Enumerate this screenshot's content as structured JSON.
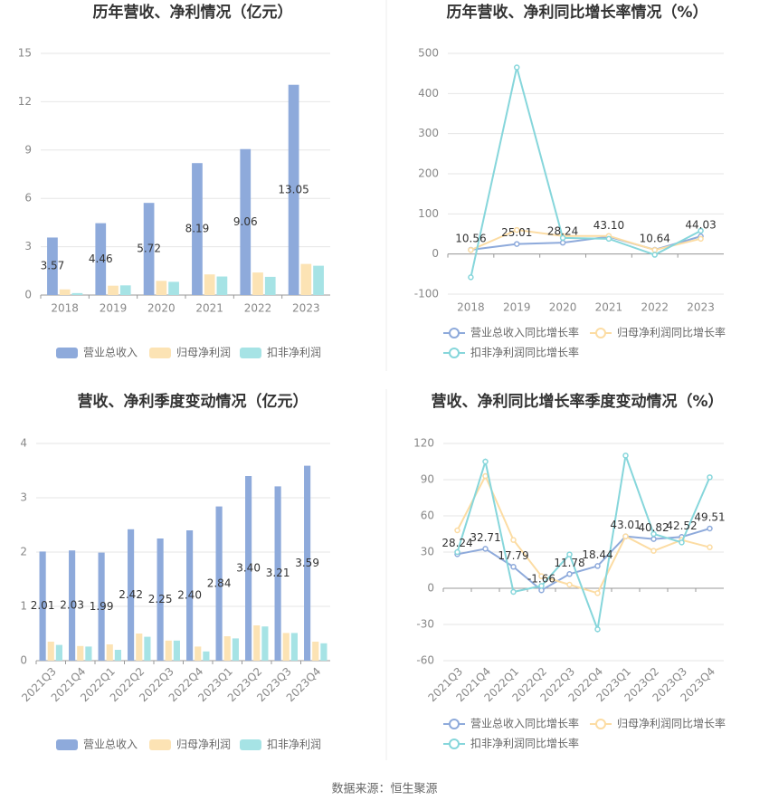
{
  "chart_data": [
    {
      "type": "bar",
      "title": "历年营收、净利情况（亿元）",
      "categories": [
        "2018",
        "2019",
        "2020",
        "2021",
        "2022",
        "2023"
      ],
      "series": [
        {
          "name": "营业总收入",
          "color": "#8eaadb",
          "values": [
            3.57,
            4.46,
            5.72,
            8.19,
            9.06,
            13.05
          ],
          "value_labels": [
            "3.57",
            "4.46",
            "5.72",
            "8.19",
            "9.06",
            "13.05"
          ]
        },
        {
          "name": "归母净利润",
          "color": "#fce3b4",
          "values": [
            0.35,
            0.58,
            0.88,
            1.28,
            1.4,
            1.93
          ]
        },
        {
          "name": "扣非净利润",
          "color": "#a6e3e5",
          "values": [
            0.12,
            0.6,
            0.82,
            1.15,
            1.13,
            1.82
          ]
        }
      ],
      "ylim": [
        0,
        15
      ],
      "yticks": [
        0,
        3,
        6,
        9,
        12,
        15
      ],
      "grid": true
    },
    {
      "type": "line",
      "title": "历年营收、净利同比增长率情况（%）",
      "categories": [
        "2018",
        "2019",
        "2020",
        "2021",
        "2022",
        "2023"
      ],
      "series": [
        {
          "name": "营业总收入同比增长率",
          "color": "#8eaadb",
          "values": [
            10.56,
            25.01,
            28.24,
            43.1,
            10.64,
            44.03
          ],
          "value_labels": [
            "10.56",
            "25.01",
            "28.24",
            "43.10",
            "10.64",
            "44.03"
          ]
        },
        {
          "name": "归母净利润同比增长率",
          "color": "#fcdca3",
          "values": [
            10,
            60,
            45,
            45,
            10,
            38
          ]
        },
        {
          "name": "扣非净利润同比增长率",
          "color": "#86d6db",
          "values": [
            -58,
            465,
            40,
            38,
            -2,
            58
          ]
        }
      ],
      "ylim": [
        -100,
        500
      ],
      "yticks": [
        -100,
        0,
        100,
        200,
        300,
        400,
        500
      ],
      "grid": true
    },
    {
      "type": "bar",
      "title": "营收、净利季度变动情况（亿元）",
      "categories": [
        "2021Q3",
        "2021Q4",
        "2022Q1",
        "2022Q2",
        "2022Q3",
        "2022Q4",
        "2023Q1",
        "2023Q2",
        "2023Q3",
        "2023Q4"
      ],
      "series": [
        {
          "name": "营业总收入",
          "color": "#8eaadb",
          "values": [
            2.01,
            2.03,
            1.99,
            2.42,
            2.25,
            2.4,
            2.84,
            3.4,
            3.21,
            3.59
          ],
          "value_labels": [
            "2.01",
            "2.03",
            "1.99",
            "2.42",
            "2.25",
            "2.40",
            "2.84",
            "3.40",
            "3.21",
            "3.59"
          ]
        },
        {
          "name": "归母净利润",
          "color": "#fce3b4",
          "values": [
            0.35,
            0.27,
            0.3,
            0.5,
            0.37,
            0.26,
            0.45,
            0.65,
            0.51,
            0.35
          ]
        },
        {
          "name": "扣非净利润",
          "color": "#a6e3e5",
          "values": [
            0.29,
            0.26,
            0.2,
            0.44,
            0.37,
            0.17,
            0.41,
            0.63,
            0.51,
            0.32
          ]
        }
      ],
      "ylim": [
        0,
        4
      ],
      "yticks": [
        0,
        1,
        2,
        3,
        4
      ],
      "grid": true
    },
    {
      "type": "line",
      "title": "营收、净利同比增长率季度变动情况（%）",
      "categories": [
        "2021Q3",
        "2021Q4",
        "2022Q1",
        "2022Q2",
        "2022Q3",
        "2022Q4",
        "2023Q1",
        "2023Q2",
        "2023Q3",
        "2023Q4"
      ],
      "series": [
        {
          "name": "营业总收入同比增长率",
          "color": "#8eaadb",
          "values": [
            28.24,
            32.71,
            17.79,
            -1.66,
            11.78,
            18.44,
            43.01,
            40.82,
            42.52,
            49.51
          ]
        },
        {
          "name": "归母净利润同比增长率",
          "color": "#fcdca3",
          "values": [
            48,
            93,
            40,
            10,
            3,
            -4,
            43,
            31,
            40,
            34
          ]
        },
        {
          "name": "扣非净利润同比增长率",
          "color": "#86d6db",
          "values": [
            30,
            105,
            -3,
            2,
            28,
            -34,
            110,
            45,
            38,
            92
          ]
        }
      ],
      "ylim": [
        -60,
        120
      ],
      "yticks": [
        -60,
        -30,
        0,
        30,
        60,
        90,
        120
      ],
      "grid": true
    }
  ],
  "source": "数据来源：恒生聚源"
}
